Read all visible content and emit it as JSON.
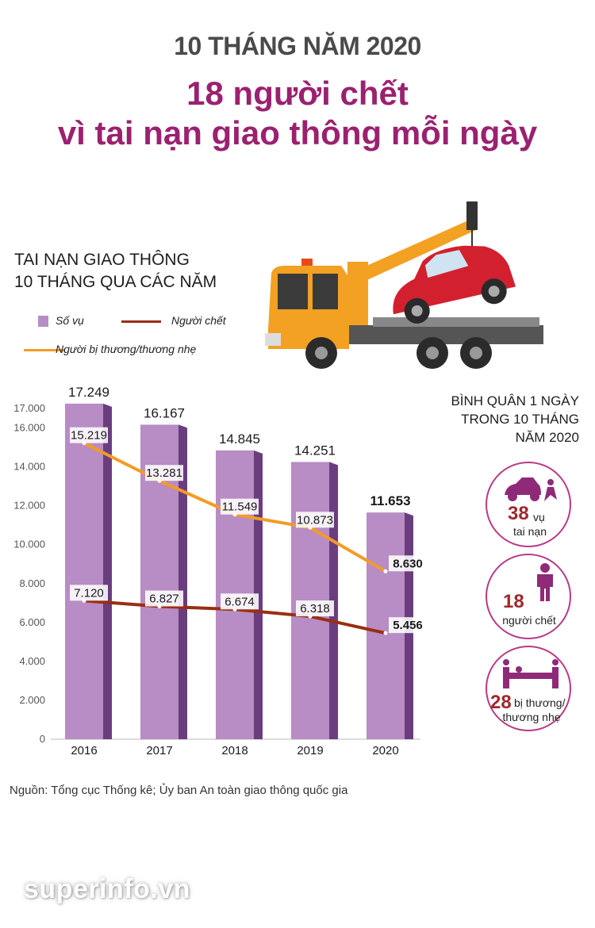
{
  "header": {
    "kicker": "10 THÁNG NĂM 2020",
    "headline_line1": "18 người chết",
    "headline_line2": "vì tai nạn giao thông mỗi ngày"
  },
  "chart_heading": {
    "line1": "TAI NẠN GIAO THÔNG",
    "line2": "10 THÁNG QUA CÁC NĂM"
  },
  "colors": {
    "accent": "#9b2170",
    "bars": "#b88cc4",
    "bars_side": "#6a3d7f",
    "deaths_line": "#9a2e12",
    "injuries_line": "#f39b25",
    "circle_border": "#b83a86",
    "icon": "#8e2a78"
  },
  "chart_data": {
    "type": "bar",
    "categories": [
      "2016",
      "2017",
      "2018",
      "2019",
      "2020"
    ],
    "series": [
      {
        "name": "Số vụ",
        "type": "bar",
        "values": [
          17249,
          16167,
          14845,
          14251,
          11653
        ],
        "labels": [
          "17.249",
          "16.167",
          "14.845",
          "14.251",
          "11.653"
        ]
      },
      {
        "name": "Người chết",
        "type": "line",
        "values": [
          7120,
          6827,
          6674,
          6318,
          5456
        ],
        "labels": [
          "7.120",
          "6.827",
          "6.674",
          "6.318",
          "5.456"
        ]
      },
      {
        "name": "Người bị thương/thương nhẹ",
        "type": "line",
        "values": [
          15219,
          13281,
          11549,
          10873,
          8630
        ],
        "labels": [
          "15.219",
          "13.281",
          "11.549",
          "10.873",
          "8.630"
        ]
      }
    ],
    "yticks": [
      0,
      2000,
      4000,
      6000,
      8000,
      10000,
      12000,
      14000,
      16000,
      17000
    ],
    "ytick_labels": [
      "0",
      "2.000",
      "4.000",
      "6.000",
      "8.000",
      "10.000",
      "12.000",
      "14.000",
      "16.000",
      "17.000"
    ],
    "ylim": [
      0,
      17500
    ],
    "grid": false,
    "legend": "top-left"
  },
  "stats": {
    "heading_line1": "BÌNH QUÂN 1 NGÀY",
    "heading_line2": "TRONG 10 THÁNG",
    "heading_line3": "NĂM 2020",
    "items": [
      {
        "number": "38",
        "label1": "vụ",
        "label2": "tai nạn",
        "icon": "car-crash-icon"
      },
      {
        "number": "18",
        "label1": "người chết",
        "icon": "person-icon"
      },
      {
        "number": "28",
        "label1": "bị thương/",
        "label2": "thương nhẹ",
        "icon": "stretcher-icon"
      }
    ]
  },
  "source": "Nguồn: Tổng cục Thống kê; Ủy ban An toàn giao thông quốc gia",
  "watermark": "superinfo.vn",
  "illustration": "tow-truck-icon"
}
